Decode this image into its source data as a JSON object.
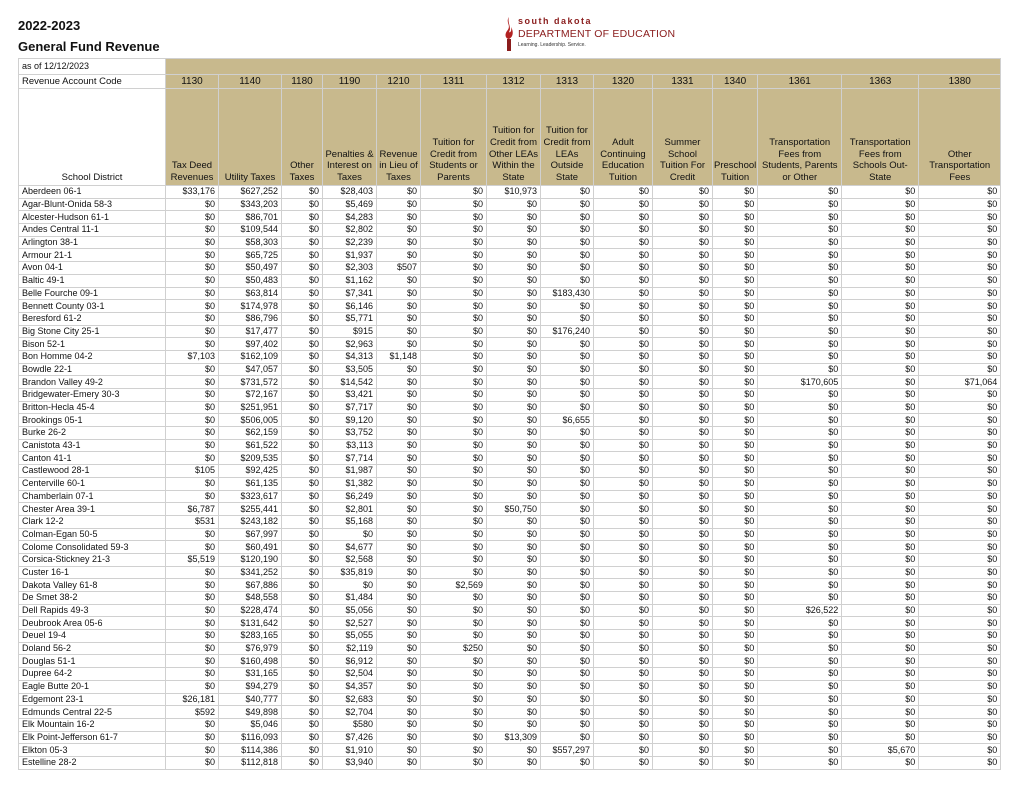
{
  "header": {
    "year": "2022-2023",
    "title": "General Fund Revenue"
  },
  "logo": {
    "line1": "south dakota",
    "line2": "DEPARTMENT OF EDUCATION",
    "line3": "Learning. Leadership. Service.",
    "color": "#8a1c1c"
  },
  "table": {
    "as_of": "as of 12/12/2023",
    "code_label": "Revenue Account Code",
    "district_label": "School District",
    "header_color": "#c8b98d",
    "columns": [
      {
        "code": "1130",
        "label": "Tax Deed Revenues"
      },
      {
        "code": "1140",
        "label": "Utility Taxes"
      },
      {
        "code": "1180",
        "label": "Other Taxes"
      },
      {
        "code": "1190",
        "label": "Penalties & Interest on Taxes"
      },
      {
        "code": "1210",
        "label": "Revenue in Lieu of Taxes"
      },
      {
        "code": "1311",
        "label": "Tuition for Credit from Students or Parents"
      },
      {
        "code": "1312",
        "label": "Tuition for Credit from Other LEAs Within the State"
      },
      {
        "code": "1313",
        "label": "Tuition for Credit from LEAs Outside State"
      },
      {
        "code": "1320",
        "label": "Adult Continuing Education Tuition"
      },
      {
        "code": "1331",
        "label": "Summer School Tuition For Credit"
      },
      {
        "code": "1340",
        "label": "Preschool Tuition"
      },
      {
        "code": "1361",
        "label": "Transportation Fees from Students, Parents or Other"
      },
      {
        "code": "1363",
        "label": "Transportation Fees from Schools Out-State"
      },
      {
        "code": "1380",
        "label": "Other Transportation Fees"
      }
    ],
    "rows": [
      [
        "Aberdeen 06-1",
        "$33,176",
        "$627,252",
        "$0",
        "$28,403",
        "$0",
        "$0",
        "$10,973",
        "$0",
        "$0",
        "$0",
        "$0",
        "$0",
        "$0",
        "$0"
      ],
      [
        "Agar-Blunt-Onida 58-3",
        "$0",
        "$343,203",
        "$0",
        "$5,469",
        "$0",
        "$0",
        "$0",
        "$0",
        "$0",
        "$0",
        "$0",
        "$0",
        "$0",
        "$0"
      ],
      [
        "Alcester-Hudson 61-1",
        "$0",
        "$86,701",
        "$0",
        "$4,283",
        "$0",
        "$0",
        "$0",
        "$0",
        "$0",
        "$0",
        "$0",
        "$0",
        "$0",
        "$0"
      ],
      [
        "Andes Central 11-1",
        "$0",
        "$109,544",
        "$0",
        "$2,802",
        "$0",
        "$0",
        "$0",
        "$0",
        "$0",
        "$0",
        "$0",
        "$0",
        "$0",
        "$0"
      ],
      [
        "Arlington 38-1",
        "$0",
        "$58,303",
        "$0",
        "$2,239",
        "$0",
        "$0",
        "$0",
        "$0",
        "$0",
        "$0",
        "$0",
        "$0",
        "$0",
        "$0"
      ],
      [
        "Armour 21-1",
        "$0",
        "$65,725",
        "$0",
        "$1,937",
        "$0",
        "$0",
        "$0",
        "$0",
        "$0",
        "$0",
        "$0",
        "$0",
        "$0",
        "$0"
      ],
      [
        "Avon 04-1",
        "$0",
        "$50,497",
        "$0",
        "$2,303",
        "$507",
        "$0",
        "$0",
        "$0",
        "$0",
        "$0",
        "$0",
        "$0",
        "$0",
        "$0"
      ],
      [
        "Baltic 49-1",
        "$0",
        "$50,483",
        "$0",
        "$1,162",
        "$0",
        "$0",
        "$0",
        "$0",
        "$0",
        "$0",
        "$0",
        "$0",
        "$0",
        "$0"
      ],
      [
        "Belle Fourche 09-1",
        "$0",
        "$63,814",
        "$0",
        "$7,341",
        "$0",
        "$0",
        "$0",
        "$183,430",
        "$0",
        "$0",
        "$0",
        "$0",
        "$0",
        "$0"
      ],
      [
        "Bennett County 03-1",
        "$0",
        "$174,978",
        "$0",
        "$6,146",
        "$0",
        "$0",
        "$0",
        "$0",
        "$0",
        "$0",
        "$0",
        "$0",
        "$0",
        "$0"
      ],
      [
        "Beresford 61-2",
        "$0",
        "$86,796",
        "$0",
        "$5,771",
        "$0",
        "$0",
        "$0",
        "$0",
        "$0",
        "$0",
        "$0",
        "$0",
        "$0",
        "$0"
      ],
      [
        "Big Stone City 25-1",
        "$0",
        "$17,477",
        "$0",
        "$915",
        "$0",
        "$0",
        "$0",
        "$176,240",
        "$0",
        "$0",
        "$0",
        "$0",
        "$0",
        "$0"
      ],
      [
        "Bison 52-1",
        "$0",
        "$97,402",
        "$0",
        "$2,963",
        "$0",
        "$0",
        "$0",
        "$0",
        "$0",
        "$0",
        "$0",
        "$0",
        "$0",
        "$0"
      ],
      [
        "Bon Homme 04-2",
        "$7,103",
        "$162,109",
        "$0",
        "$4,313",
        "$1,148",
        "$0",
        "$0",
        "$0",
        "$0",
        "$0",
        "$0",
        "$0",
        "$0",
        "$0"
      ],
      [
        "Bowdle 22-1",
        "$0",
        "$47,057",
        "$0",
        "$3,505",
        "$0",
        "$0",
        "$0",
        "$0",
        "$0",
        "$0",
        "$0",
        "$0",
        "$0",
        "$0"
      ],
      [
        "Brandon Valley 49-2",
        "$0",
        "$731,572",
        "$0",
        "$14,542",
        "$0",
        "$0",
        "$0",
        "$0",
        "$0",
        "$0",
        "$0",
        "$170,605",
        "$0",
        "$71,064"
      ],
      [
        "Bridgewater-Emery 30-3",
        "$0",
        "$72,167",
        "$0",
        "$3,421",
        "$0",
        "$0",
        "$0",
        "$0",
        "$0",
        "$0",
        "$0",
        "$0",
        "$0",
        "$0"
      ],
      [
        "Britton-Hecla 45-4",
        "$0",
        "$251,951",
        "$0",
        "$7,717",
        "$0",
        "$0",
        "$0",
        "$0",
        "$0",
        "$0",
        "$0",
        "$0",
        "$0",
        "$0"
      ],
      [
        "Brookings 05-1",
        "$0",
        "$506,005",
        "$0",
        "$9,120",
        "$0",
        "$0",
        "$0",
        "$6,655",
        "$0",
        "$0",
        "$0",
        "$0",
        "$0",
        "$0"
      ],
      [
        "Burke 26-2",
        "$0",
        "$62,159",
        "$0",
        "$3,752",
        "$0",
        "$0",
        "$0",
        "$0",
        "$0",
        "$0",
        "$0",
        "$0",
        "$0",
        "$0"
      ],
      [
        "Canistota 43-1",
        "$0",
        "$61,522",
        "$0",
        "$3,113",
        "$0",
        "$0",
        "$0",
        "$0",
        "$0",
        "$0",
        "$0",
        "$0",
        "$0",
        "$0"
      ],
      [
        "Canton 41-1",
        "$0",
        "$209,535",
        "$0",
        "$7,714",
        "$0",
        "$0",
        "$0",
        "$0",
        "$0",
        "$0",
        "$0",
        "$0",
        "$0",
        "$0"
      ],
      [
        "Castlewood 28-1",
        "$105",
        "$92,425",
        "$0",
        "$1,987",
        "$0",
        "$0",
        "$0",
        "$0",
        "$0",
        "$0",
        "$0",
        "$0",
        "$0",
        "$0"
      ],
      [
        "Centerville 60-1",
        "$0",
        "$61,135",
        "$0",
        "$1,382",
        "$0",
        "$0",
        "$0",
        "$0",
        "$0",
        "$0",
        "$0",
        "$0",
        "$0",
        "$0"
      ],
      [
        "Chamberlain 07-1",
        "$0",
        "$323,617",
        "$0",
        "$6,249",
        "$0",
        "$0",
        "$0",
        "$0",
        "$0",
        "$0",
        "$0",
        "$0",
        "$0",
        "$0"
      ],
      [
        "Chester Area 39-1",
        "$6,787",
        "$255,441",
        "$0",
        "$2,801",
        "$0",
        "$0",
        "$50,750",
        "$0",
        "$0",
        "$0",
        "$0",
        "$0",
        "$0",
        "$0"
      ],
      [
        "Clark 12-2",
        "$531",
        "$243,182",
        "$0",
        "$5,168",
        "$0",
        "$0",
        "$0",
        "$0",
        "$0",
        "$0",
        "$0",
        "$0",
        "$0",
        "$0"
      ],
      [
        "Colman-Egan 50-5",
        "$0",
        "$67,997",
        "$0",
        "$0",
        "$0",
        "$0",
        "$0",
        "$0",
        "$0",
        "$0",
        "$0",
        "$0",
        "$0",
        "$0"
      ],
      [
        "Colome Consolidated 59-3",
        "$0",
        "$60,491",
        "$0",
        "$4,677",
        "$0",
        "$0",
        "$0",
        "$0",
        "$0",
        "$0",
        "$0",
        "$0",
        "$0",
        "$0"
      ],
      [
        "Corsica-Stickney 21-3",
        "$5,519",
        "$120,190",
        "$0",
        "$2,568",
        "$0",
        "$0",
        "$0",
        "$0",
        "$0",
        "$0",
        "$0",
        "$0",
        "$0",
        "$0"
      ],
      [
        "Custer 16-1",
        "$0",
        "$341,252",
        "$0",
        "$35,819",
        "$0",
        "$0",
        "$0",
        "$0",
        "$0",
        "$0",
        "$0",
        "$0",
        "$0",
        "$0"
      ],
      [
        "Dakota Valley 61-8",
        "$0",
        "$67,886",
        "$0",
        "$0",
        "$0",
        "$2,569",
        "$0",
        "$0",
        "$0",
        "$0",
        "$0",
        "$0",
        "$0",
        "$0"
      ],
      [
        "De Smet 38-2",
        "$0",
        "$48,558",
        "$0",
        "$1,484",
        "$0",
        "$0",
        "$0",
        "$0",
        "$0",
        "$0",
        "$0",
        "$0",
        "$0",
        "$0"
      ],
      [
        "Dell Rapids 49-3",
        "$0",
        "$228,474",
        "$0",
        "$5,056",
        "$0",
        "$0",
        "$0",
        "$0",
        "$0",
        "$0",
        "$0",
        "$26,522",
        "$0",
        "$0"
      ],
      [
        "Deubrook Area 05-6",
        "$0",
        "$131,642",
        "$0",
        "$2,527",
        "$0",
        "$0",
        "$0",
        "$0",
        "$0",
        "$0",
        "$0",
        "$0",
        "$0",
        "$0"
      ],
      [
        "Deuel 19-4",
        "$0",
        "$283,165",
        "$0",
        "$5,055",
        "$0",
        "$0",
        "$0",
        "$0",
        "$0",
        "$0",
        "$0",
        "$0",
        "$0",
        "$0"
      ],
      [
        "Doland 56-2",
        "$0",
        "$76,979",
        "$0",
        "$2,119",
        "$0",
        "$250",
        "$0",
        "$0",
        "$0",
        "$0",
        "$0",
        "$0",
        "$0",
        "$0"
      ],
      [
        "Douglas 51-1",
        "$0",
        "$160,498",
        "$0",
        "$6,912",
        "$0",
        "$0",
        "$0",
        "$0",
        "$0",
        "$0",
        "$0",
        "$0",
        "$0",
        "$0"
      ],
      [
        "Dupree 64-2",
        "$0",
        "$31,165",
        "$0",
        "$2,504",
        "$0",
        "$0",
        "$0",
        "$0",
        "$0",
        "$0",
        "$0",
        "$0",
        "$0",
        "$0"
      ],
      [
        "Eagle Butte 20-1",
        "$0",
        "$94,279",
        "$0",
        "$4,357",
        "$0",
        "$0",
        "$0",
        "$0",
        "$0",
        "$0",
        "$0",
        "$0",
        "$0",
        "$0"
      ],
      [
        "Edgemont 23-1",
        "$26,181",
        "$40,777",
        "$0",
        "$2,683",
        "$0",
        "$0",
        "$0",
        "$0",
        "$0",
        "$0",
        "$0",
        "$0",
        "$0",
        "$0"
      ],
      [
        "Edmunds Central 22-5",
        "$592",
        "$49,898",
        "$0",
        "$2,704",
        "$0",
        "$0",
        "$0",
        "$0",
        "$0",
        "$0",
        "$0",
        "$0",
        "$0",
        "$0"
      ],
      [
        "Elk Mountain 16-2",
        "$0",
        "$5,046",
        "$0",
        "$580",
        "$0",
        "$0",
        "$0",
        "$0",
        "$0",
        "$0",
        "$0",
        "$0",
        "$0",
        "$0"
      ],
      [
        "Elk Point-Jefferson 61-7",
        "$0",
        "$116,093",
        "$0",
        "$7,426",
        "$0",
        "$0",
        "$13,309",
        "$0",
        "$0",
        "$0",
        "$0",
        "$0",
        "$0",
        "$0"
      ],
      [
        "Elkton 05-3",
        "$0",
        "$114,386",
        "$0",
        "$1,910",
        "$0",
        "$0",
        "$0",
        "$557,297",
        "$0",
        "$0",
        "$0",
        "$0",
        "$5,670",
        "$0"
      ],
      [
        "Estelline 28-2",
        "$0",
        "$112,818",
        "$0",
        "$3,940",
        "$0",
        "$0",
        "$0",
        "$0",
        "$0",
        "$0",
        "$0",
        "$0",
        "$0",
        "$0"
      ]
    ]
  }
}
